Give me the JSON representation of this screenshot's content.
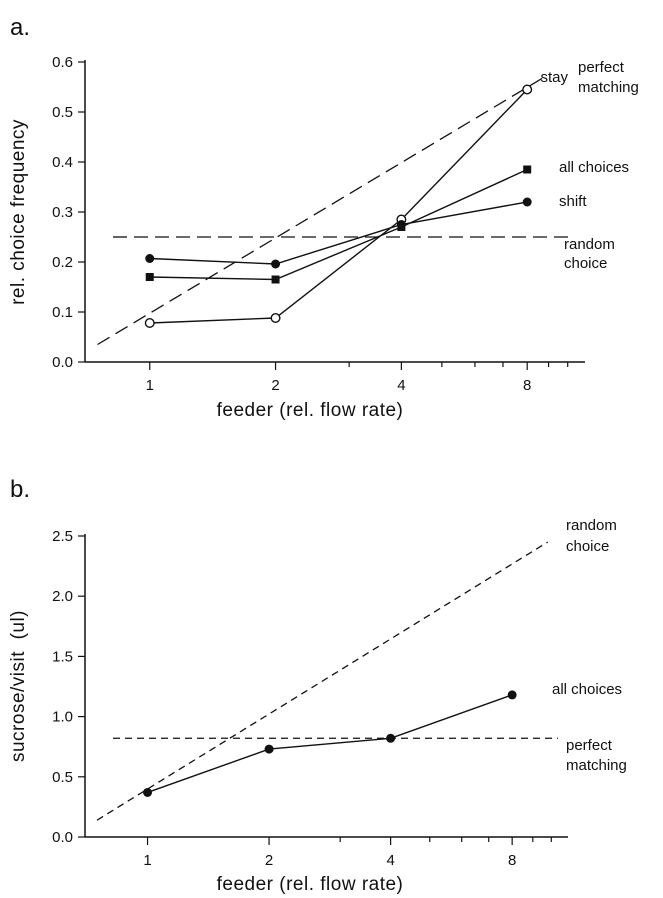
{
  "chart_data": [
    {
      "type": "line",
      "panel_label": "a.",
      "xlabel": "feeder (rel. flow rate)",
      "ylabel": "rel. choice frequency",
      "xscale": "log",
      "xlim": [
        0.7,
        11
      ],
      "ylim": [
        0.0,
        0.6
      ],
      "xticks": [
        1,
        2,
        4,
        8
      ],
      "xtick_labels": [
        "1",
        "2",
        "4",
        "8"
      ],
      "yticks": [
        0.0,
        0.1,
        0.2,
        0.3,
        0.4,
        0.5,
        0.6
      ],
      "ytick_labels": [
        "0.0",
        "0.1",
        "0.2",
        "0.3",
        "0.4",
        "0.5",
        "0.6"
      ],
      "x": [
        1,
        2,
        4,
        8
      ],
      "series": [
        {
          "name": "stay",
          "marker": "open-circle",
          "values": [
            0.078,
            0.088,
            0.285,
            0.545
          ]
        },
        {
          "name": "all choices",
          "marker": "square",
          "values": [
            0.17,
            0.165,
            0.27,
            0.385
          ]
        },
        {
          "name": "shift",
          "marker": "filled-circle",
          "values": [
            0.207,
            0.196,
            0.275,
            0.32
          ]
        }
      ],
      "reference_lines": [
        {
          "name": "perfect matching",
          "label_lines": [
            "perfect",
            "matching"
          ],
          "style": "dashed",
          "kind": "diagonal",
          "from": [
            0.75,
            0.035
          ],
          "to": [
            8.8,
            0.57
          ]
        },
        {
          "name": "random choice",
          "label_lines": [
            "random",
            "choice"
          ],
          "style": "dashed",
          "kind": "horizontal",
          "y": 0.25
        }
      ],
      "grid": false
    },
    {
      "type": "line",
      "panel_label": "b.",
      "xlabel": "feeder (rel. flow rate)",
      "ylabel": "sucrose/visit  (ul)",
      "xscale": "log",
      "xlim": [
        0.7,
        11
      ],
      "ylim": [
        0.0,
        2.5
      ],
      "xticks": [
        1,
        2,
        4,
        8
      ],
      "xtick_labels": [
        "1",
        "2",
        "4",
        "8"
      ],
      "yticks": [
        0.0,
        0.5,
        1.0,
        1.5,
        2.0,
        2.5
      ],
      "ytick_labels": [
        "0.0",
        "0.5",
        "1.0",
        "1.5",
        "2.0",
        "2.5"
      ],
      "x": [
        1,
        2,
        4,
        8
      ],
      "series": [
        {
          "name": "all choices",
          "marker": "filled-circle",
          "values": [
            0.37,
            0.73,
            0.82,
            1.18
          ]
        }
      ],
      "reference_lines": [
        {
          "name": "random choice",
          "label_lines": [
            "random",
            "choice"
          ],
          "style": "dashed",
          "kind": "diagonal",
          "from": [
            0.75,
            0.14
          ],
          "to": [
            9.8,
            2.45
          ]
        },
        {
          "name": "perfect matching",
          "label_lines": [
            "perfect",
            "matching"
          ],
          "style": "dashed",
          "kind": "horizontal",
          "y": 0.82
        }
      ],
      "grid": false
    }
  ]
}
